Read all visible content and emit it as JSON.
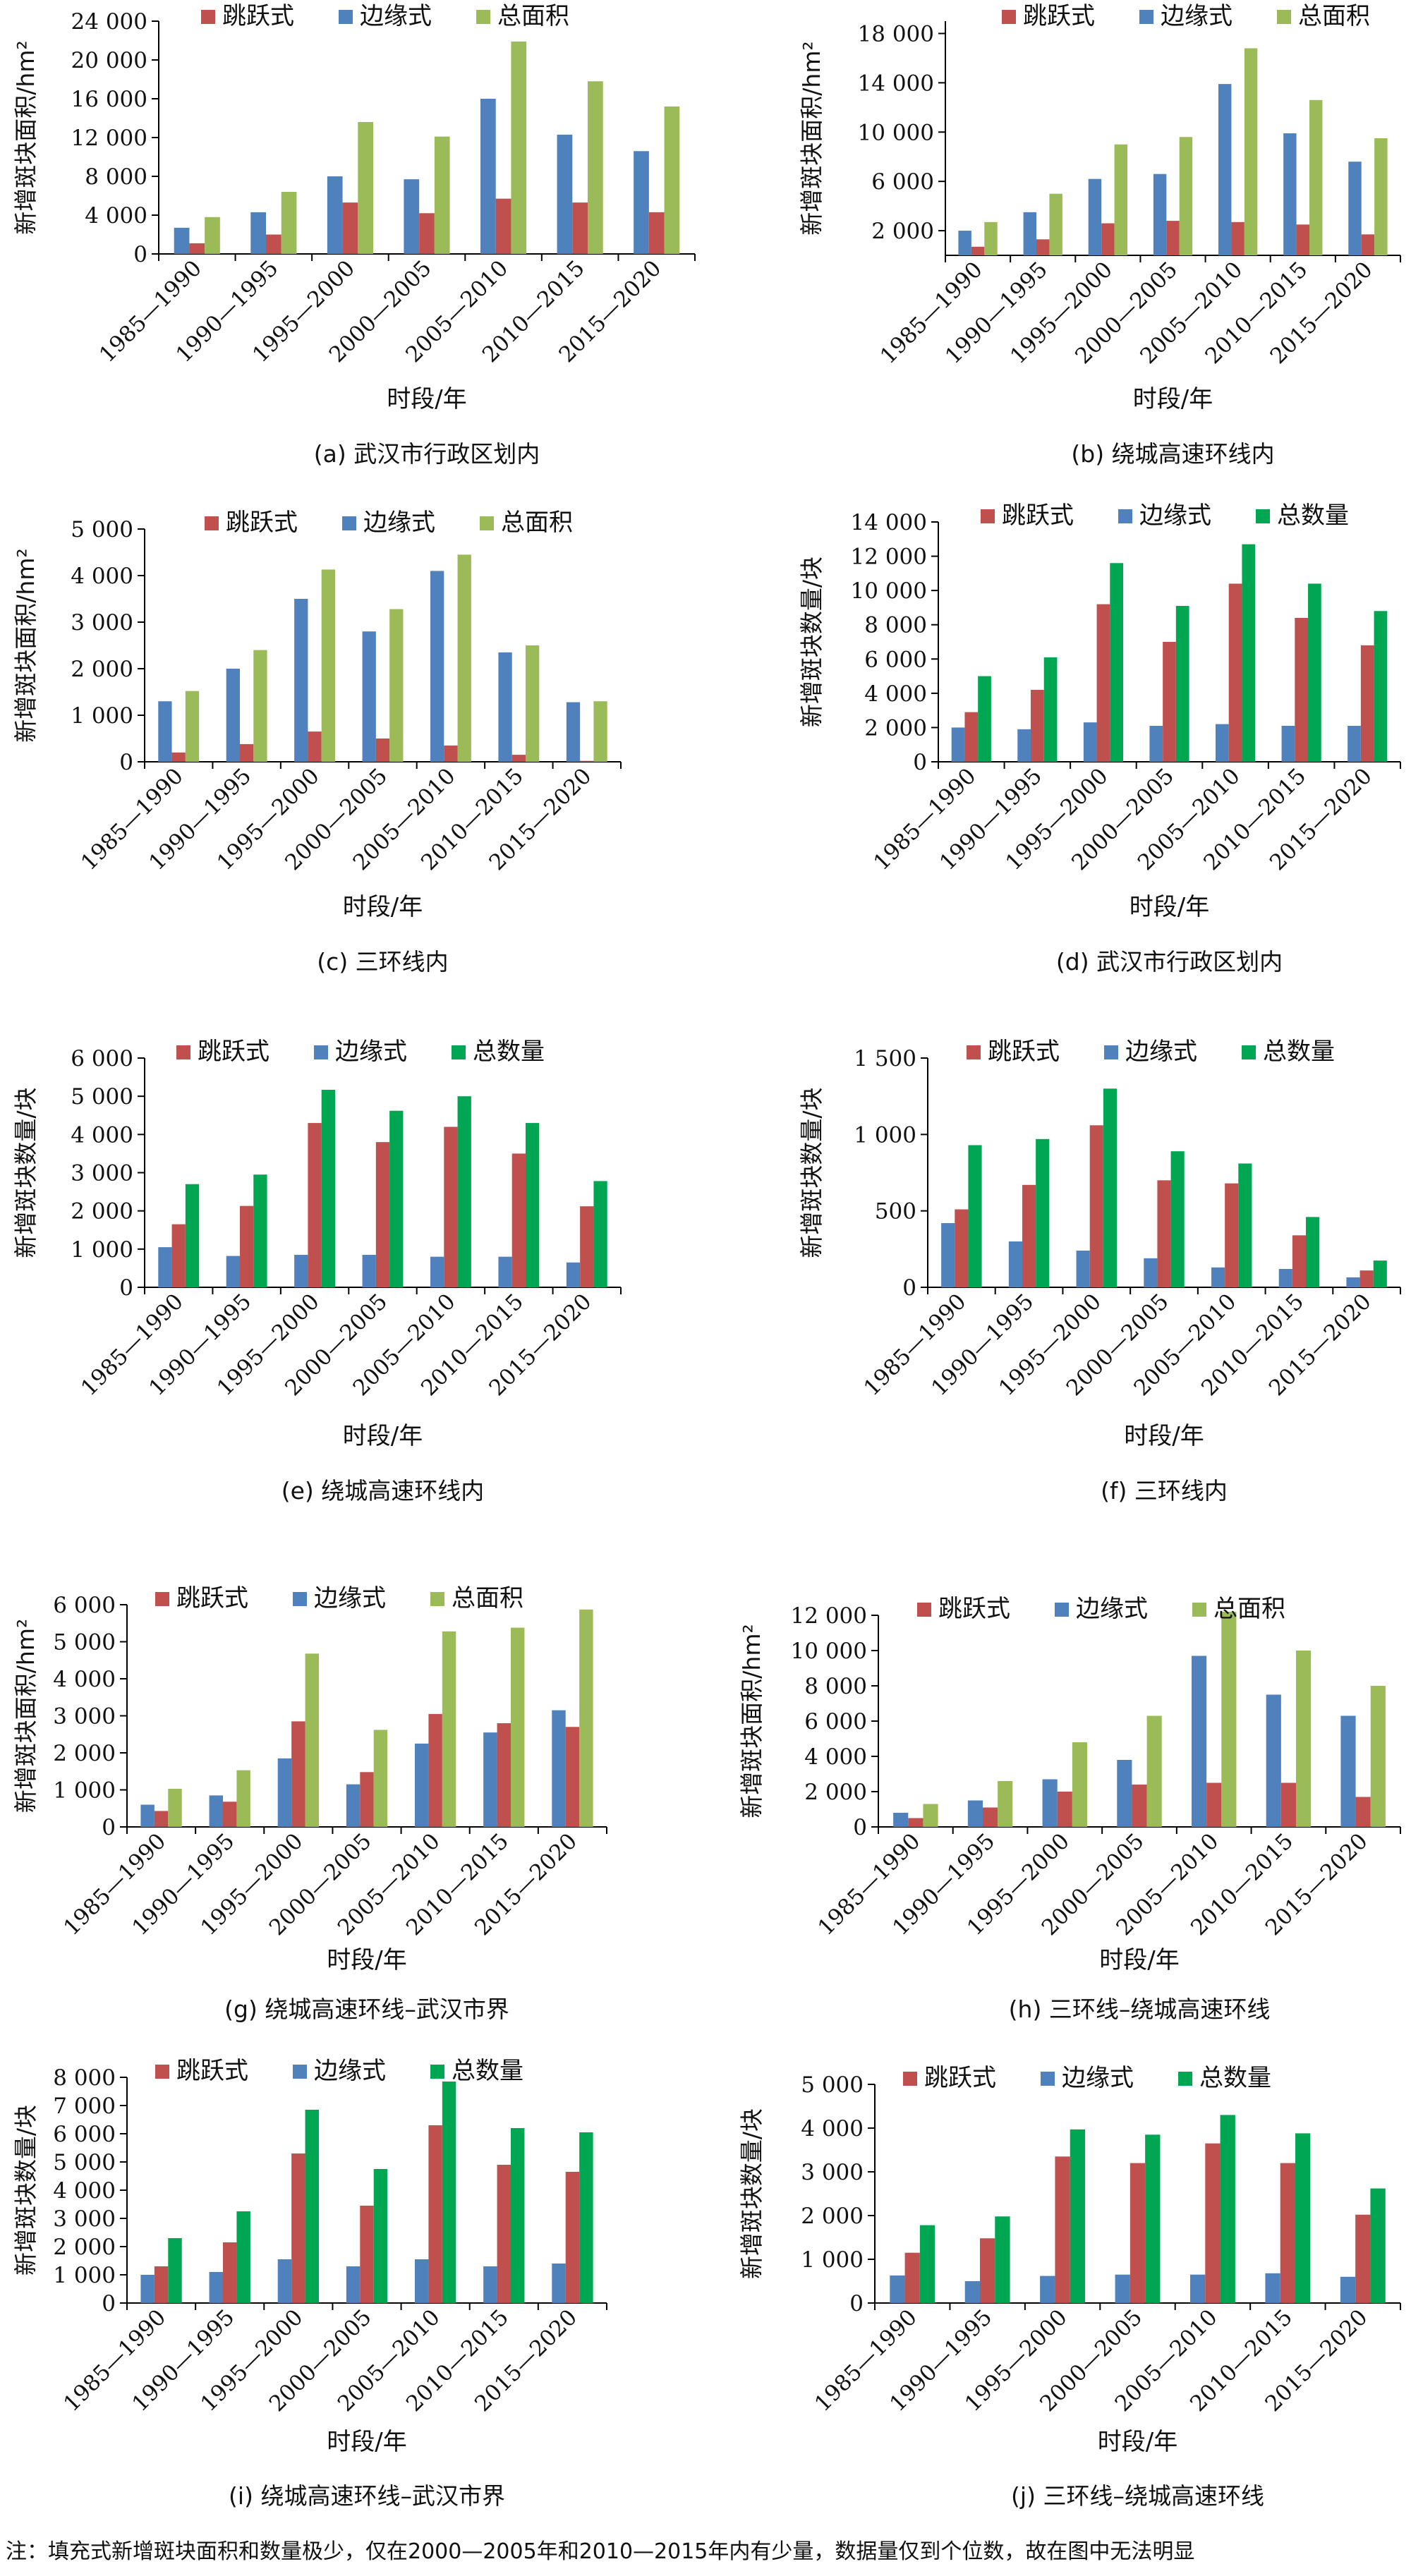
{
  "chart_data": [
    {
      "id": "a",
      "type": "bar",
      "caption": "(a) 武汉市行政区划内",
      "ylabel": "新增斑块面积/hm²",
      "xlabel": "时段/年",
      "categories": [
        "1985—1990",
        "1990—1995",
        "1995—2000",
        "2000—2005",
        "2005—2010",
        "2010—2015",
        "2015—2020"
      ],
      "ylim": [
        0,
        24000
      ],
      "yticks": [
        0,
        4000,
        8000,
        12000,
        16000,
        20000,
        24000
      ],
      "ytick_labels": [
        "0",
        "4 000",
        "8 000",
        "12 000",
        "16 000",
        "20 000",
        "24 000"
      ],
      "legend": [
        "跳跃式",
        "边缘式",
        "总面积"
      ],
      "series": [
        {
          "name": "边缘式",
          "values": [
            2700,
            4300,
            8000,
            7700,
            16000,
            12300,
            10600
          ]
        },
        {
          "name": "跳跃式",
          "values": [
            1100,
            2000,
            5300,
            4200,
            5700,
            5300,
            4300
          ]
        },
        {
          "name": "总面积",
          "values": [
            3800,
            6400,
            13600,
            12100,
            21900,
            17800,
            15200
          ]
        }
      ]
    },
    {
      "id": "b",
      "type": "bar",
      "caption": "(b) 绕城高速环线内",
      "ylabel": "新增斑块面积/hm²",
      "xlabel": "时段/年",
      "categories": [
        "1985—1990",
        "1990—1995",
        "1995—2000",
        "2000—2005",
        "2005—2010",
        "2010—2015",
        "2015—2020"
      ],
      "ylim": [
        0,
        19000
      ],
      "yticks": [
        2000,
        6000,
        10000,
        14000,
        18000
      ],
      "ytick_labels": [
        "2 000",
        "6 000",
        "10 000",
        "14 000",
        "18 000"
      ],
      "legend": [
        "跳跃式",
        "边缘式",
        "总面积"
      ],
      "series": [
        {
          "name": "边缘式",
          "values": [
            2000,
            3500,
            6200,
            6600,
            13900,
            9900,
            7600
          ]
        },
        {
          "name": "跳跃式",
          "values": [
            700,
            1300,
            2600,
            2800,
            2700,
            2500,
            1700
          ]
        },
        {
          "name": "总面积",
          "values": [
            2700,
            5000,
            9000,
            9600,
            16800,
            12600,
            9500
          ]
        }
      ]
    },
    {
      "id": "c",
      "type": "bar",
      "caption": "(c) 三环线内",
      "ylabel": "新增斑块面积/hm²",
      "xlabel": "时段/年",
      "categories": [
        "1985—1990",
        "1990—1995",
        "1995—2000",
        "2000—2005",
        "2005—2010",
        "2010—2015",
        "2015—2020"
      ],
      "ylim": [
        0,
        5000
      ],
      "yticks": [
        0,
        1000,
        2000,
        3000,
        4000,
        5000
      ],
      "ytick_labels": [
        "0",
        "1 000",
        "2 000",
        "3 000",
        "4 000",
        "5 000"
      ],
      "legend": [
        "跳跃式",
        "边缘式",
        "总面积"
      ],
      "series": [
        {
          "name": "边缘式",
          "values": [
            1300,
            2000,
            3500,
            2800,
            4100,
            2350,
            1280
          ]
        },
        {
          "name": "跳跃式",
          "values": [
            200,
            380,
            650,
            500,
            350,
            150,
            20
          ]
        },
        {
          "name": "总面积",
          "values": [
            1520,
            2400,
            4130,
            3280,
            4450,
            2500,
            1300
          ]
        }
      ]
    },
    {
      "id": "d",
      "type": "bar",
      "caption": "(d) 武汉市行政区划内",
      "ylabel": "新增斑块数量/块",
      "xlabel": "时段/年",
      "categories": [
        "1985—1990",
        "1990—1995",
        "1995—2000",
        "2000—2005",
        "2005—2010",
        "2010—2015",
        "2015—2020"
      ],
      "ylim": [
        0,
        14000
      ],
      "yticks": [
        0,
        2000,
        4000,
        6000,
        8000,
        10000,
        12000,
        14000
      ],
      "ytick_labels": [
        "0",
        "2 000",
        "4 000",
        "6 000",
        "8 000",
        "10 000",
        "12 000",
        "14 000"
      ],
      "legend": [
        "跳跃式",
        "边缘式",
        "总数量"
      ],
      "series": [
        {
          "name": "边缘式",
          "values": [
            2000,
            1900,
            2300,
            2100,
            2200,
            2100,
            2100
          ]
        },
        {
          "name": "跳跃式",
          "values": [
            2900,
            4200,
            9200,
            7000,
            10400,
            8400,
            6800
          ]
        },
        {
          "name": "总数量",
          "values": [
            5000,
            6100,
            11600,
            9100,
            12700,
            10400,
            8800
          ]
        }
      ]
    },
    {
      "id": "e",
      "type": "bar",
      "caption": "(e) 绕城高速环线内",
      "ylabel": "新增斑块数量/块",
      "xlabel": "时段/年",
      "categories": [
        "1985—1990",
        "1990—1995",
        "1995—2000",
        "2000—2005",
        "2005—2010",
        "2010—2015",
        "2015—2020"
      ],
      "ylim": [
        0,
        6000
      ],
      "yticks": [
        0,
        1000,
        2000,
        3000,
        4000,
        5000,
        6000
      ],
      "ytick_labels": [
        "0",
        "1 000",
        "2 000",
        "3 000",
        "4 000",
        "5 000",
        "6 000"
      ],
      "legend": [
        "跳跃式",
        "边缘式",
        "总数量"
      ],
      "series": [
        {
          "name": "边缘式",
          "values": [
            1050,
            820,
            850,
            850,
            800,
            800,
            650
          ]
        },
        {
          "name": "跳跃式",
          "values": [
            1650,
            2130,
            4300,
            3800,
            4200,
            3500,
            2120
          ]
        },
        {
          "name": "总数量",
          "values": [
            2700,
            2950,
            5170,
            4620,
            5000,
            4300,
            2780
          ]
        }
      ]
    },
    {
      "id": "f",
      "type": "bar",
      "caption": "(f) 三环线内",
      "ylabel": "新增斑块数量/块",
      "xlabel": "时段/年",
      "categories": [
        "1985—1990",
        "1990—1995",
        "1995—2000",
        "2000—2005",
        "2005—2010",
        "2010—2015",
        "2015—2020"
      ],
      "ylim": [
        0,
        1500
      ],
      "yticks": [
        0,
        500,
        1000,
        1500
      ],
      "ytick_labels": [
        "0",
        "500",
        "1 000",
        "1 500"
      ],
      "legend": [
        "跳跃式",
        "边缘式",
        "总数量"
      ],
      "series": [
        {
          "name": "边缘式",
          "values": [
            420,
            300,
            240,
            190,
            130,
            120,
            65
          ]
        },
        {
          "name": "跳跃式",
          "values": [
            510,
            670,
            1060,
            700,
            680,
            340,
            110
          ]
        },
        {
          "name": "总数量",
          "values": [
            930,
            970,
            1300,
            890,
            810,
            460,
            175
          ]
        }
      ]
    },
    {
      "id": "g",
      "type": "bar",
      "caption": "(g) 绕城高速环线–武汉市界",
      "ylabel": "新增斑块面积/hm²",
      "xlabel": "时段/年",
      "categories": [
        "1985—1990",
        "1990—1995",
        "1995—2000",
        "2000—2005",
        "2005—2010",
        "2010—2015",
        "2015—2020"
      ],
      "ylim": [
        0,
        6000
      ],
      "yticks": [
        0,
        1000,
        2000,
        3000,
        4000,
        5000,
        6000
      ],
      "ytick_labels": [
        "0",
        "1 000",
        "2 000",
        "3 000",
        "4 000",
        "5 000",
        "6 000"
      ],
      "legend": [
        "跳跃式",
        "边缘式",
        "总面积"
      ],
      "series": [
        {
          "name": "边缘式",
          "values": [
            600,
            850,
            1850,
            1150,
            2250,
            2550,
            3150
          ]
        },
        {
          "name": "跳跃式",
          "values": [
            430,
            680,
            2850,
            1480,
            3050,
            2800,
            2700
          ]
        },
        {
          "name": "总面积",
          "values": [
            1030,
            1530,
            4680,
            2620,
            5280,
            5380,
            5870
          ]
        }
      ]
    },
    {
      "id": "h",
      "type": "bar",
      "caption": "(h) 三环线–绕城高速环线",
      "ylabel": "新增斑块面积/hm²",
      "xlabel": "时段/年",
      "categories": [
        "1985—1990",
        "1990—1995",
        "1995—2000",
        "2000—2005",
        "2005—2010",
        "2010—2015",
        "2015—2020"
      ],
      "ylim": [
        0,
        12000
      ],
      "yticks": [
        0,
        2000,
        4000,
        6000,
        8000,
        10000,
        12000
      ],
      "ytick_labels": [
        "0",
        "2 000",
        "4 000",
        "6 000",
        "8 000",
        "10 000",
        "12 000"
      ],
      "legend": [
        "跳跃式",
        "边缘式",
        "总面积"
      ],
      "series": [
        {
          "name": "边缘式",
          "values": [
            800,
            1500,
            2700,
            3800,
            9700,
            7500,
            6300
          ]
        },
        {
          "name": "跳跃式",
          "values": [
            500,
            1100,
            2000,
            2400,
            2500,
            2500,
            1700
          ]
        },
        {
          "name": "总面积",
          "values": [
            1300,
            2600,
            4800,
            6300,
            12200,
            10000,
            8000
          ]
        }
      ]
    },
    {
      "id": "i",
      "type": "bar",
      "caption": "(i) 绕城高速环线–武汉市界",
      "ylabel": "新增斑块数量/块",
      "xlabel": "时段/年",
      "categories": [
        "1985—1990",
        "1990—1995",
        "1995—2000",
        "2000—2005",
        "2005—2010",
        "2010—2015",
        "2015—2020"
      ],
      "ylim": [
        0,
        8000
      ],
      "yticks": [
        0,
        1000,
        2000,
        3000,
        4000,
        5000,
        6000,
        7000,
        8000
      ],
      "ytick_labels": [
        "0",
        "1 000",
        "2 000",
        "3 000",
        "4 000",
        "5 000",
        "6 000",
        "7 000",
        "8 000"
      ],
      "legend": [
        "跳跃式",
        "边缘式",
        "总数量"
      ],
      "series": [
        {
          "name": "边缘式",
          "values": [
            1000,
            1100,
            1550,
            1300,
            1550,
            1300,
            1400
          ]
        },
        {
          "name": "跳跃式",
          "values": [
            1300,
            2150,
            5300,
            3450,
            6300,
            4900,
            4650
          ]
        },
        {
          "name": "总数量",
          "values": [
            2300,
            3250,
            6850,
            4750,
            7850,
            6200,
            6050
          ]
        }
      ]
    },
    {
      "id": "j",
      "type": "bar",
      "caption": "(j) 三环线–绕城高速环线",
      "ylabel": "新增斑块数量/块",
      "xlabel": "时段/年",
      "categories": [
        "1985—1990",
        "1990—1995",
        "1995—2000",
        "2000—2005",
        "2005—2010",
        "2010—2015",
        "2015—2020"
      ],
      "ylim": [
        0,
        5000
      ],
      "yticks": [
        0,
        1000,
        2000,
        3000,
        4000,
        5000
      ],
      "ytick_labels": [
        "0",
        "1 000",
        "2 000",
        "3 000",
        "4 000",
        "5 000"
      ],
      "legend": [
        "跳跃式",
        "边缘式",
        "总数量"
      ],
      "series": [
        {
          "name": "边缘式",
          "values": [
            630,
            500,
            620,
            650,
            650,
            680,
            600
          ]
        },
        {
          "name": "跳跃式",
          "values": [
            1150,
            1480,
            3350,
            3200,
            3650,
            3200,
            2020
          ]
        },
        {
          "name": "总数量",
          "values": [
            1780,
            1980,
            3970,
            3850,
            4300,
            3880,
            2620
          ]
        }
      ]
    }
  ],
  "colors": {
    "跳跃式": "#c0504d",
    "边缘式": "#4f81bd",
    "总面积": "#9bbb59",
    "总数量": "#00a651"
  },
  "note": "注：填充式新增斑块面积和数量极少，仅在2000—2005年和2010—2015年内有少量，数据量仅到个位数，故在图中无法明显"
}
